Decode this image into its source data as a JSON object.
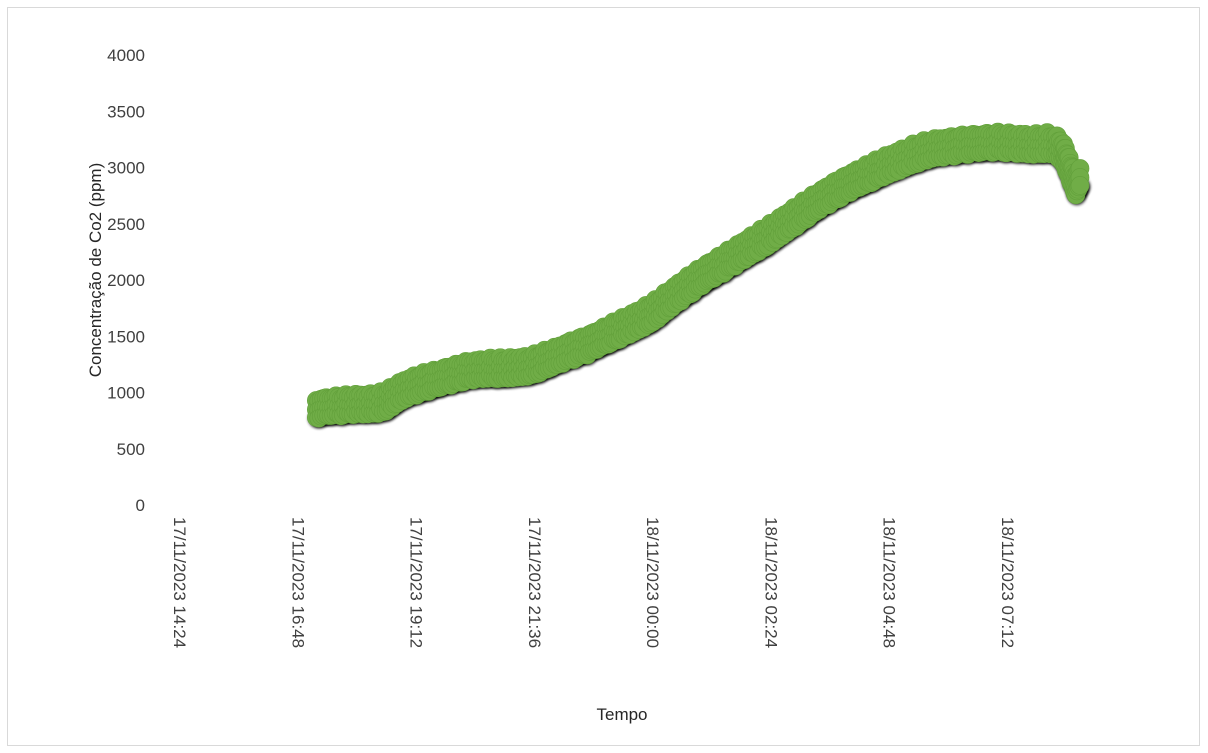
{
  "chart_data": {
    "type": "scatter",
    "title": "",
    "xlabel": "Tempo",
    "ylabel": "Concentração de Co2 (ppm)",
    "ylim": [
      0,
      4000
    ],
    "yticks": [
      0,
      500,
      1000,
      1500,
      2000,
      2500,
      3000,
      3500,
      4000
    ],
    "xlim": [
      "2023-11-17T14:24",
      "2023-11-18T09:36"
    ],
    "xticks": [
      {
        "value": "2023-11-17T14:24",
        "label": "17/11/2023 14:24"
      },
      {
        "value": "2023-11-17T16:48",
        "label": "17/11/2023 16:48"
      },
      {
        "value": "2023-11-17T19:12",
        "label": "17/11/2023 19:12"
      },
      {
        "value": "2023-11-17T21:36",
        "label": "17/11/2023 21:36"
      },
      {
        "value": "2023-11-18T00:00",
        "label": "18/11/2023 00:00"
      },
      {
        "value": "2023-11-18T02:24",
        "label": "18/11/2023 02:24"
      },
      {
        "value": "2023-11-18T04:48",
        "label": "18/11/2023 04:48"
      },
      {
        "value": "2023-11-18T07:12",
        "label": "18/11/2023 07:12"
      }
    ],
    "grid": false,
    "legend": "none",
    "series": [
      {
        "color": "#70ad47",
        "shadow_color": "#000000",
        "points": [
          [
            "2023-11-17T17:10",
            780
          ],
          [
            "2023-11-17T17:25",
            800
          ],
          [
            "2023-11-17T17:40",
            810
          ],
          [
            "2023-11-17T17:55",
            820
          ],
          [
            "2023-11-17T18:10",
            820
          ],
          [
            "2023-11-17T18:25",
            830
          ],
          [
            "2023-11-17T18:35",
            850
          ],
          [
            "2023-11-17T18:45",
            900
          ],
          [
            "2023-11-17T19:00",
            960
          ],
          [
            "2023-11-17T19:15",
            1000
          ],
          [
            "2023-11-17T19:30",
            1030
          ],
          [
            "2023-11-17T19:45",
            1060
          ],
          [
            "2023-11-17T20:00",
            1090
          ],
          [
            "2023-11-17T20:15",
            1120
          ],
          [
            "2023-11-17T20:30",
            1130
          ],
          [
            "2023-11-17T20:45",
            1140
          ],
          [
            "2023-11-17T21:00",
            1140
          ],
          [
            "2023-11-17T21:15",
            1150
          ],
          [
            "2023-11-17T21:30",
            1160
          ],
          [
            "2023-11-17T21:45",
            1200
          ],
          [
            "2023-11-17T22:00",
            1240
          ],
          [
            "2023-11-17T22:20",
            1300
          ],
          [
            "2023-11-17T22:40",
            1350
          ],
          [
            "2023-11-17T23:00",
            1420
          ],
          [
            "2023-11-17T23:20",
            1490
          ],
          [
            "2023-11-17T23:40",
            1560
          ],
          [
            "2023-11-18T00:00",
            1640
          ],
          [
            "2023-11-18T00:20",
            1750
          ],
          [
            "2023-11-18T00:40",
            1860
          ],
          [
            "2023-11-18T01:00",
            1960
          ],
          [
            "2023-11-18T01:20",
            2050
          ],
          [
            "2023-11-18T01:40",
            2140
          ],
          [
            "2023-11-18T02:00",
            2230
          ],
          [
            "2023-11-18T02:20",
            2320
          ],
          [
            "2023-11-18T02:40",
            2420
          ],
          [
            "2023-11-18T03:00",
            2520
          ],
          [
            "2023-11-18T03:20",
            2620
          ],
          [
            "2023-11-18T03:40",
            2710
          ],
          [
            "2023-11-18T04:00",
            2790
          ],
          [
            "2023-11-18T04:20",
            2860
          ],
          [
            "2023-11-18T04:40",
            2930
          ],
          [
            "2023-11-18T05:00",
            2990
          ],
          [
            "2023-11-18T05:20",
            3050
          ],
          [
            "2023-11-18T05:40",
            3090
          ],
          [
            "2023-11-18T06:00",
            3110
          ],
          [
            "2023-11-18T06:20",
            3130
          ],
          [
            "2023-11-18T06:40",
            3140
          ],
          [
            "2023-11-18T07:00",
            3150
          ],
          [
            "2023-11-18T07:20",
            3140
          ],
          [
            "2023-11-18T07:40",
            3130
          ],
          [
            "2023-11-18T08:00",
            3140
          ],
          [
            "2023-11-18T08:10",
            3130
          ],
          [
            "2023-11-18T08:20",
            3050
          ],
          [
            "2023-11-18T08:28",
            2900
          ],
          [
            "2023-11-18T08:35",
            2760
          ],
          [
            "2023-11-18T08:40",
            2850
          ]
        ]
      }
    ]
  }
}
